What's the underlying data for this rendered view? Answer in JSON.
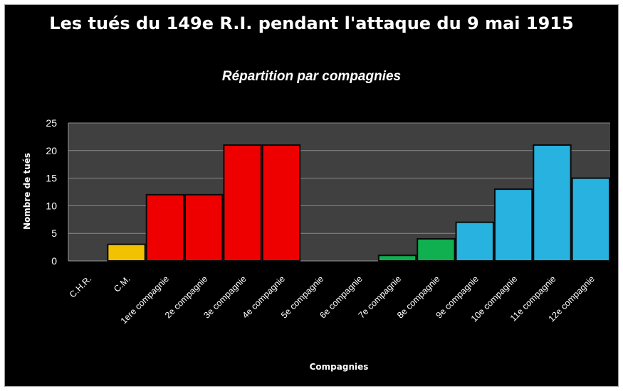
{
  "chart_data": {
    "type": "bar",
    "title": "Les tués du 149e R.I. pendant l'attaque du 9 mai 1915",
    "subtitle": "Répartition par compagnies",
    "xlabel": "Compagnies",
    "ylabel": "Nombre de tués",
    "ylim": [
      0,
      25
    ],
    "yticks": [
      0,
      5,
      10,
      15,
      20,
      25
    ],
    "grid": true,
    "legend": "none",
    "categories": [
      "C.H.R.",
      "C.M.",
      "1ere compagnie",
      "2e compagnie",
      "3e compagnie",
      "4e compagnie",
      "5e compagnie",
      "6e compagnie",
      "7e compagnie",
      "8e compagnie",
      "9e compagnie",
      "10e compagnie",
      "11e compagnie",
      "12e compagnie"
    ],
    "values": [
      0,
      3,
      12,
      12,
      21,
      21,
      0,
      0,
      1,
      4,
      7,
      13,
      21,
      15
    ],
    "bar_colors": [
      "#f2c200",
      "#f2c200",
      "#ee0000",
      "#ee0000",
      "#ee0000",
      "#ee0000",
      "#ee0000",
      "#ee0000",
      "#10b050",
      "#10b050",
      "#28b2e0",
      "#28b2e0",
      "#28b2e0",
      "#28b2e0"
    ],
    "colors": {
      "background": "#000000",
      "plot_area": "#404040",
      "gridline": "#8a8a8a",
      "text": "#ffffff"
    }
  }
}
